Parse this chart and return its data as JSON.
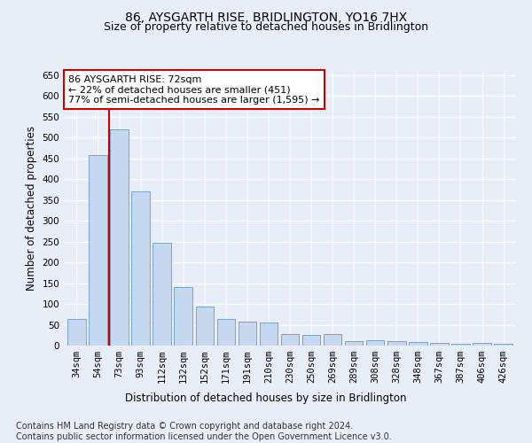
{
  "title": "86, AYSGARTH RISE, BRIDLINGTON, YO16 7HX",
  "subtitle": "Size of property relative to detached houses in Bridlington",
  "xlabel": "Distribution of detached houses by size in Bridlington",
  "ylabel": "Number of detached properties",
  "categories": [
    "34sqm",
    "54sqm",
    "73sqm",
    "93sqm",
    "112sqm",
    "132sqm",
    "152sqm",
    "171sqm",
    "191sqm",
    "210sqm",
    "230sqm",
    "250sqm",
    "269sqm",
    "289sqm",
    "308sqm",
    "328sqm",
    "348sqm",
    "367sqm",
    "387sqm",
    "406sqm",
    "426sqm"
  ],
  "values": [
    63,
    457,
    520,
    370,
    248,
    140,
    93,
    63,
    58,
    55,
    27,
    26,
    27,
    11,
    12,
    11,
    9,
    7,
    5,
    7,
    5
  ],
  "bar_color": "#c5d8f0",
  "bar_edge_color": "#6699cc",
  "red_line_x": 1.5,
  "annotation_text": "86 AYSGARTH RISE: 72sqm\n← 22% of detached houses are smaller (451)\n77% of semi-detached houses are larger (1,595) →",
  "annotation_box_color": "#ffffff",
  "annotation_box_edge_color": "#cc0000",
  "footer_line1": "Contains HM Land Registry data © Crown copyright and database right 2024.",
  "footer_line2": "Contains public sector information licensed under the Open Government Licence v3.0.",
  "ylim": [
    0,
    660
  ],
  "yticks": [
    0,
    50,
    100,
    150,
    200,
    250,
    300,
    350,
    400,
    450,
    500,
    550,
    600,
    650
  ],
  "bg_color": "#e8eef8",
  "plot_bg_color": "#e8eef8",
  "grid_color": "#ffffff",
  "title_fontsize": 10,
  "subtitle_fontsize": 9,
  "axis_label_fontsize": 8.5,
  "tick_fontsize": 7.5,
  "annotation_fontsize": 8,
  "footer_fontsize": 7
}
